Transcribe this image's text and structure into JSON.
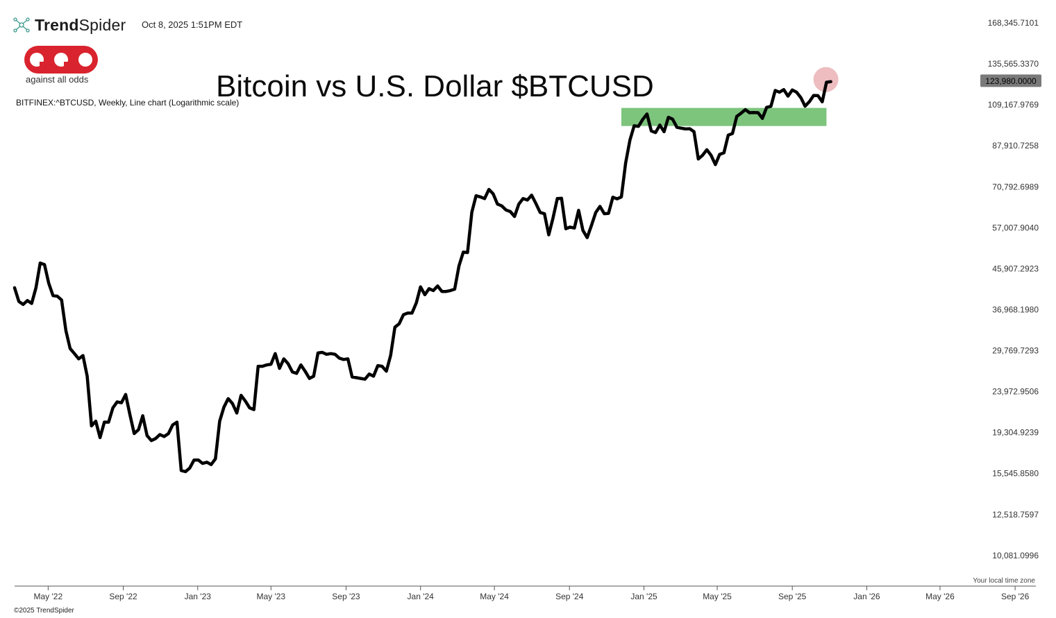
{
  "header": {
    "brand_bold": "Trend",
    "brand_regular": "Spider",
    "timestamp": "Oct 8, 2025 1:51PM EDT"
  },
  "logo": {
    "tagline": "against all odds",
    "color": "#d9232e",
    "icon": "aao-logo"
  },
  "footer": {
    "copyright": "©2025 TrendSpider",
    "timezone_note": "Your local time zone"
  },
  "chart_data": {
    "type": "line",
    "title": "Bitcoin vs U.S. Dollar $BTCUSD",
    "subtitle": "BITFINEX:^BTCUSD, Weekly, Line chart (Logarithmic scale)",
    "y_scale": "log",
    "ylim": [
      8700,
      190000
    ],
    "y_ticks": [
      "168,345.7101",
      "135,565.3370",
      "109,167.9769",
      "87,910.7258",
      "70,792.6989",
      "57,007.9040",
      "45,907.2923",
      "36,968.1980",
      "29,769.7293",
      "23,972.9506",
      "19,304.9239",
      "15,545.8580",
      "12,518.7597",
      "10,081.0996"
    ],
    "x_ticks": [
      "May '22",
      "Sep '22",
      "Jan '23",
      "May '23",
      "Sep '23",
      "Jan '24",
      "May '24",
      "Sep '24",
      "Jan '25",
      "May '25",
      "Sep '25",
      "Jan '26",
      "May '26",
      "Sep '26"
    ],
    "x_tick_dates": [
      "2022-05-01",
      "2022-09-01",
      "2023-01-01",
      "2023-05-01",
      "2023-09-01",
      "2024-01-01",
      "2024-05-01",
      "2024-09-01",
      "2025-01-01",
      "2025-05-01",
      "2025-09-01",
      "2026-01-01",
      "2026-05-01",
      "2026-09-01"
    ],
    "xlim": [
      "2022-03-07",
      "2026-10-05"
    ],
    "current_price": "123,980.0000",
    "series": [
      {
        "color": "#000000",
        "points": [
          [
            "2022-03-07",
            41500
          ],
          [
            "2022-03-14",
            38600
          ],
          [
            "2022-03-21",
            38000
          ],
          [
            "2022-03-28",
            38800
          ],
          [
            "2022-04-04",
            38200
          ],
          [
            "2022-04-11",
            41500
          ],
          [
            "2022-04-18",
            47300
          ],
          [
            "2022-04-25",
            46900
          ],
          [
            "2022-05-02",
            42500
          ],
          [
            "2022-05-09",
            39800
          ],
          [
            "2022-05-16",
            39700
          ],
          [
            "2022-05-23",
            38900
          ],
          [
            "2022-05-30",
            33100
          ],
          [
            "2022-06-06",
            30100
          ],
          [
            "2022-06-13",
            29300
          ],
          [
            "2022-06-20",
            28500
          ],
          [
            "2022-06-27",
            29000
          ],
          [
            "2022-07-04",
            26000
          ],
          [
            "2022-07-11",
            20000
          ],
          [
            "2022-07-18",
            20500
          ],
          [
            "2022-07-25",
            18800
          ],
          [
            "2022-08-01",
            20400
          ],
          [
            "2022-08-08",
            20400
          ],
          [
            "2022-08-15",
            22000
          ],
          [
            "2022-08-22",
            22700
          ],
          [
            "2022-08-29",
            22600
          ],
          [
            "2022-09-05",
            23600
          ],
          [
            "2022-09-12",
            21200
          ],
          [
            "2022-09-19",
            19200
          ],
          [
            "2022-09-26",
            19600
          ],
          [
            "2022-10-03",
            21100
          ],
          [
            "2022-10-10",
            19000
          ],
          [
            "2022-10-17",
            18500
          ],
          [
            "2022-10-24",
            18700
          ],
          [
            "2022-10-31",
            19100
          ],
          [
            "2022-11-07",
            18900
          ],
          [
            "2022-11-14",
            19200
          ],
          [
            "2022-11-21",
            20100
          ],
          [
            "2022-11-28",
            20400
          ],
          [
            "2022-12-05",
            15800
          ],
          [
            "2022-12-12",
            15700
          ],
          [
            "2022-12-19",
            16000
          ],
          [
            "2022-12-26",
            16700
          ],
          [
            "2023-01-02",
            16700
          ],
          [
            "2023-01-09",
            16400
          ],
          [
            "2023-01-16",
            16500
          ],
          [
            "2023-01-23",
            16300
          ],
          [
            "2023-01-30",
            16800
          ],
          [
            "2023-02-06",
            20500
          ],
          [
            "2023-02-13",
            22100
          ],
          [
            "2023-02-20",
            23100
          ],
          [
            "2023-02-27",
            22500
          ],
          [
            "2023-03-06",
            21400
          ],
          [
            "2023-03-13",
            23500
          ],
          [
            "2023-03-20",
            22800
          ],
          [
            "2023-03-27",
            22000
          ],
          [
            "2023-04-03",
            21800
          ],
          [
            "2023-04-10",
            27400
          ],
          [
            "2023-04-17",
            27400
          ],
          [
            "2023-04-24",
            27600
          ],
          [
            "2023-05-01",
            27700
          ],
          [
            "2023-05-08",
            29300
          ],
          [
            "2023-05-15",
            27100
          ],
          [
            "2023-05-22",
            28500
          ],
          [
            "2023-05-29",
            27800
          ],
          [
            "2023-06-05",
            26600
          ],
          [
            "2023-06-12",
            26400
          ],
          [
            "2023-06-19",
            27600
          ],
          [
            "2023-06-26",
            26700
          ],
          [
            "2023-07-03",
            25700
          ],
          [
            "2023-07-10",
            26000
          ],
          [
            "2023-07-17",
            29400
          ],
          [
            "2023-07-24",
            29500
          ],
          [
            "2023-07-31",
            29200
          ],
          [
            "2023-08-07",
            29300
          ],
          [
            "2023-08-14",
            29200
          ],
          [
            "2023-08-21",
            28600
          ],
          [
            "2023-08-28",
            28400
          ],
          [
            "2023-09-04",
            28500
          ],
          [
            "2023-09-11",
            25900
          ],
          [
            "2023-09-18",
            25800
          ],
          [
            "2023-09-25",
            25700
          ],
          [
            "2023-10-02",
            25600
          ],
          [
            "2023-10-09",
            26300
          ],
          [
            "2023-10-16",
            26000
          ],
          [
            "2023-10-23",
            27500
          ],
          [
            "2023-10-30",
            27400
          ],
          [
            "2023-11-06",
            26700
          ],
          [
            "2023-11-13",
            29000
          ],
          [
            "2023-11-20",
            33700
          ],
          [
            "2023-11-27",
            34300
          ],
          [
            "2023-12-04",
            36000
          ],
          [
            "2023-12-11",
            36300
          ],
          [
            "2023-12-18",
            36300
          ],
          [
            "2023-12-25",
            38300
          ],
          [
            "2024-01-01",
            41700
          ],
          [
            "2024-01-08",
            40000
          ],
          [
            "2024-01-15",
            41300
          ],
          [
            "2024-01-22",
            40900
          ],
          [
            "2024-01-29",
            41900
          ],
          [
            "2024-02-05",
            40700
          ],
          [
            "2024-02-12",
            40700
          ],
          [
            "2024-02-19",
            40900
          ],
          [
            "2024-02-26",
            41200
          ],
          [
            "2024-03-04",
            46600
          ],
          [
            "2024-03-11",
            50100
          ],
          [
            "2024-03-18",
            50000
          ],
          [
            "2024-03-25",
            61900
          ],
          [
            "2024-04-01",
            67500
          ],
          [
            "2024-04-08",
            67100
          ],
          [
            "2024-04-15",
            66500
          ],
          [
            "2024-04-22",
            69800
          ],
          [
            "2024-04-29",
            68200
          ],
          [
            "2024-05-06",
            64600
          ],
          [
            "2024-05-13",
            64000
          ],
          [
            "2024-05-20",
            62600
          ],
          [
            "2024-05-27",
            62100
          ],
          [
            "2024-06-03",
            60500
          ],
          [
            "2024-06-10",
            64600
          ],
          [
            "2024-06-17",
            66500
          ],
          [
            "2024-06-24",
            66000
          ],
          [
            "2024-07-01",
            67700
          ],
          [
            "2024-07-08",
            64800
          ],
          [
            "2024-07-15",
            61800
          ],
          [
            "2024-07-22",
            61400
          ],
          [
            "2024-07-29",
            54900
          ],
          [
            "2024-08-05",
            60000
          ],
          [
            "2024-08-12",
            66500
          ],
          [
            "2024-08-19",
            66600
          ],
          [
            "2024-08-26",
            56700
          ],
          [
            "2024-09-02",
            57200
          ],
          [
            "2024-09-09",
            56900
          ],
          [
            "2024-09-16",
            62500
          ],
          [
            "2024-09-23",
            56200
          ],
          [
            "2024-09-30",
            54100
          ],
          [
            "2024-10-07",
            57700
          ],
          [
            "2024-10-14",
            61800
          ],
          [
            "2024-10-21",
            63800
          ],
          [
            "2024-10-28",
            61400
          ],
          [
            "2024-11-04",
            61500
          ],
          [
            "2024-11-11",
            67000
          ],
          [
            "2024-11-18",
            66400
          ],
          [
            "2024-11-25",
            67100
          ],
          [
            "2024-12-02",
            80200
          ],
          [
            "2024-12-09",
            90600
          ],
          [
            "2024-12-16",
            97700
          ],
          [
            "2024-12-23",
            97400
          ],
          [
            "2024-12-30",
            101100
          ],
          [
            "2025-01-06",
            104000
          ],
          [
            "2025-01-13",
            95100
          ],
          [
            "2025-01-20",
            94300
          ],
          [
            "2025-01-27",
            98100
          ],
          [
            "2025-02-03",
            94700
          ],
          [
            "2025-02-10",
            102200
          ],
          [
            "2025-02-17",
            101200
          ],
          [
            "2025-02-24",
            96900
          ],
          [
            "2025-03-03",
            96500
          ],
          [
            "2025-03-10",
            96100
          ],
          [
            "2025-03-17",
            96200
          ],
          [
            "2025-03-24",
            94700
          ],
          [
            "2025-03-31",
            82000
          ],
          [
            "2025-04-07",
            83600
          ],
          [
            "2025-04-14",
            86100
          ],
          [
            "2025-04-21",
            83600
          ],
          [
            "2025-04-28",
            79600
          ],
          [
            "2025-05-05",
            84000
          ],
          [
            "2025-05-12",
            84700
          ],
          [
            "2025-05-19",
            93000
          ],
          [
            "2025-05-26",
            93800
          ],
          [
            "2025-06-02",
            102700
          ],
          [
            "2025-06-09",
            104400
          ],
          [
            "2025-06-16",
            106400
          ],
          [
            "2025-06-23",
            104700
          ],
          [
            "2025-06-30",
            104800
          ],
          [
            "2025-07-07",
            104700
          ],
          [
            "2025-07-14",
            101600
          ],
          [
            "2025-07-21",
            107700
          ],
          [
            "2025-07-28",
            108300
          ],
          [
            "2025-08-04",
            117800
          ],
          [
            "2025-08-11",
            116700
          ],
          [
            "2025-08-18",
            118300
          ],
          [
            "2025-08-25",
            114300
          ],
          [
            "2025-09-01",
            118100
          ],
          [
            "2025-09-08",
            116700
          ],
          [
            "2025-09-15",
            113400
          ],
          [
            "2025-09-22",
            108400
          ],
          [
            "2025-09-29",
            111000
          ],
          [
            "2025-10-06",
            114700
          ],
          [
            "2025-10-13",
            114600
          ],
          [
            "2025-10-20",
            110900
          ],
          [
            "2025-10-27",
            123000
          ],
          [
            "2025-11-03",
            123400
          ]
        ]
      }
    ],
    "annotations": [
      {
        "type": "zone",
        "color": "#7dc47d",
        "x": [
          "2024-11-25",
          "2025-10-27"
        ],
        "y": [
          97600,
          107400
        ]
      },
      {
        "type": "highlight-circle",
        "color": "#eab1b4",
        "x": "2025-11-03",
        "y": 124800
      }
    ]
  }
}
